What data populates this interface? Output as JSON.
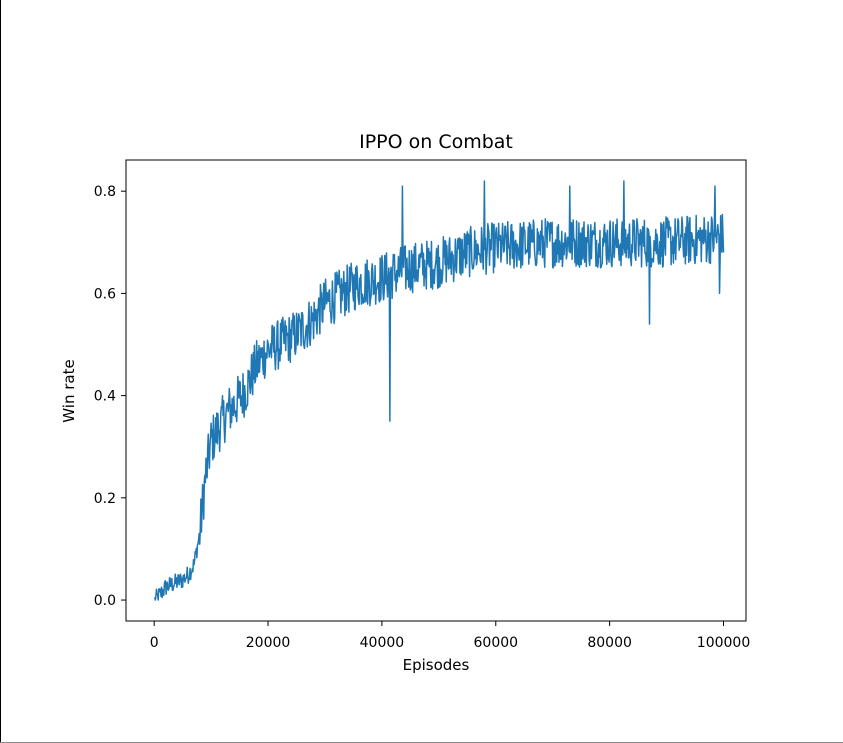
{
  "chart_data": {
    "type": "line",
    "title": "IPPO on Combat",
    "xlabel": "Episodes",
    "ylabel": "Win rate",
    "xlim": [
      -4950,
      103950
    ],
    "ylim": [
      -0.041,
      0.861
    ],
    "xticks": [
      0,
      20000,
      40000,
      60000,
      80000,
      100000
    ],
    "yticks": [
      0.0,
      0.2,
      0.4,
      0.6,
      0.8
    ],
    "xtick_labels": [
      "0",
      "20000",
      "40000",
      "60000",
      "80000",
      "100000"
    ],
    "ytick_labels": [
      "0.0",
      "0.2",
      "0.4",
      "0.6",
      "0.8"
    ],
    "grid": false,
    "series": [
      {
        "color": "#1f77b4",
        "x_start": 100,
        "x_step": 100,
        "noise_amplitude": 0.05,
        "anchors": [
          [
            100,
            0.0
          ],
          [
            1000,
            0.01
          ],
          [
            2000,
            0.025
          ],
          [
            3000,
            0.03
          ],
          [
            4000,
            0.035
          ],
          [
            5000,
            0.04
          ],
          [
            6000,
            0.05
          ],
          [
            7000,
            0.07
          ],
          [
            8000,
            0.13
          ],
          [
            9000,
            0.24
          ],
          [
            10000,
            0.31
          ],
          [
            11000,
            0.33
          ],
          [
            12000,
            0.35
          ],
          [
            13000,
            0.37
          ],
          [
            14000,
            0.38
          ],
          [
            16000,
            0.41
          ],
          [
            18000,
            0.46
          ],
          [
            20000,
            0.49
          ],
          [
            22000,
            0.5
          ],
          [
            25000,
            0.52
          ],
          [
            28000,
            0.55
          ],
          [
            30000,
            0.58
          ],
          [
            33000,
            0.6
          ],
          [
            36000,
            0.62
          ],
          [
            40000,
            0.63
          ],
          [
            45000,
            0.65
          ],
          [
            50000,
            0.66
          ],
          [
            55000,
            0.68
          ],
          [
            60000,
            0.69
          ],
          [
            70000,
            0.7
          ],
          [
            80000,
            0.7
          ],
          [
            90000,
            0.7
          ],
          [
            100000,
            0.71
          ]
        ],
        "spikes": [
          [
            41400,
            0.35
          ],
          [
            43600,
            0.81
          ],
          [
            58000,
            0.82
          ],
          [
            73000,
            0.81
          ],
          [
            82500,
            0.82
          ],
          [
            87000,
            0.54
          ],
          [
            98500,
            0.81
          ],
          [
            99300,
            0.6
          ]
        ]
      }
    ]
  }
}
